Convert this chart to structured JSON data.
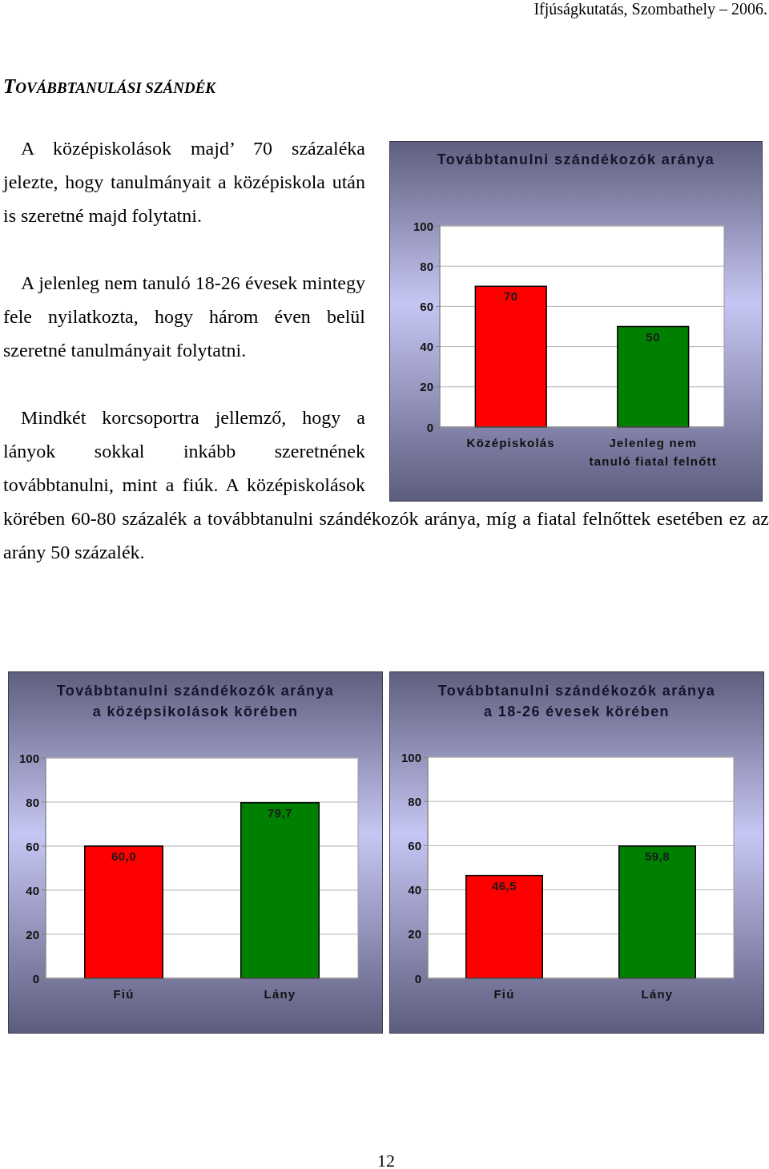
{
  "chart_data": [
    {
      "type": "other",
      "title": "TOVÁBBTANULÁSI SZÁNDÉK",
      "annotations": [
        "Ifjúságkutatás, Szombathely – 2006.",
        "A középiskolások majd’ 70 százaléka jelezte, hogy tanulmányait a középiskola után is szeretné majd folytatni.",
        "A jelenleg nem tanuló 18-26 évesek mintegy fele nyilatkozta, hogy három éven belül szeretné tanulmányait folytatni.",
        "Mindkét korcsoportra jellemző, hogy a lányok sokkal inkább szeretnének továbbtanulni, mint a fiúk. A középiskolások körében 60-80 százalék a továbbtanulni szándékozók aránya, míg a fiatal felnőttek esetében ez az arány 50 százalék.",
        "12"
      ]
    },
    {
      "type": "bar",
      "title": "Továbbtanulni szándékozók aránya",
      "categories": [
        "Középiskolás",
        "Jelenleg nem tanuló fiatal felnőtt"
      ],
      "values": [
        70,
        50
      ],
      "colors": [
        "#ff0000",
        "#008000"
      ],
      "ylim": [
        0,
        100
      ],
      "yticks": [
        0,
        20,
        40,
        60,
        80,
        100
      ],
      "grid": "y",
      "data_labels": true
    },
    {
      "type": "bar",
      "title": "Továbbtanulni szándékozók aránya\na középsikolások körében",
      "categories": [
        "Fiú",
        "Lány"
      ],
      "values": [
        60.0,
        79.7
      ],
      "value_labels": [
        "60,0",
        "79,7"
      ],
      "colors": [
        "#ff0000",
        "#008000"
      ],
      "ylim": [
        0,
        100
      ],
      "yticks": [
        0,
        20,
        40,
        60,
        80,
        100
      ],
      "grid": "y"
    },
    {
      "type": "bar",
      "title": "Továbbtanulni szándékozók aránya\na 18-26 évesek körében",
      "categories": [
        "Fiú",
        "Lány"
      ],
      "values": [
        46.5,
        59.8
      ],
      "value_labels": [
        "46,5",
        "59,8"
      ],
      "colors": [
        "#ff0000",
        "#008000"
      ],
      "ylim": [
        0,
        100
      ],
      "yticks": [
        0,
        20,
        40,
        60,
        80,
        100
      ],
      "grid": "y"
    }
  ]
}
